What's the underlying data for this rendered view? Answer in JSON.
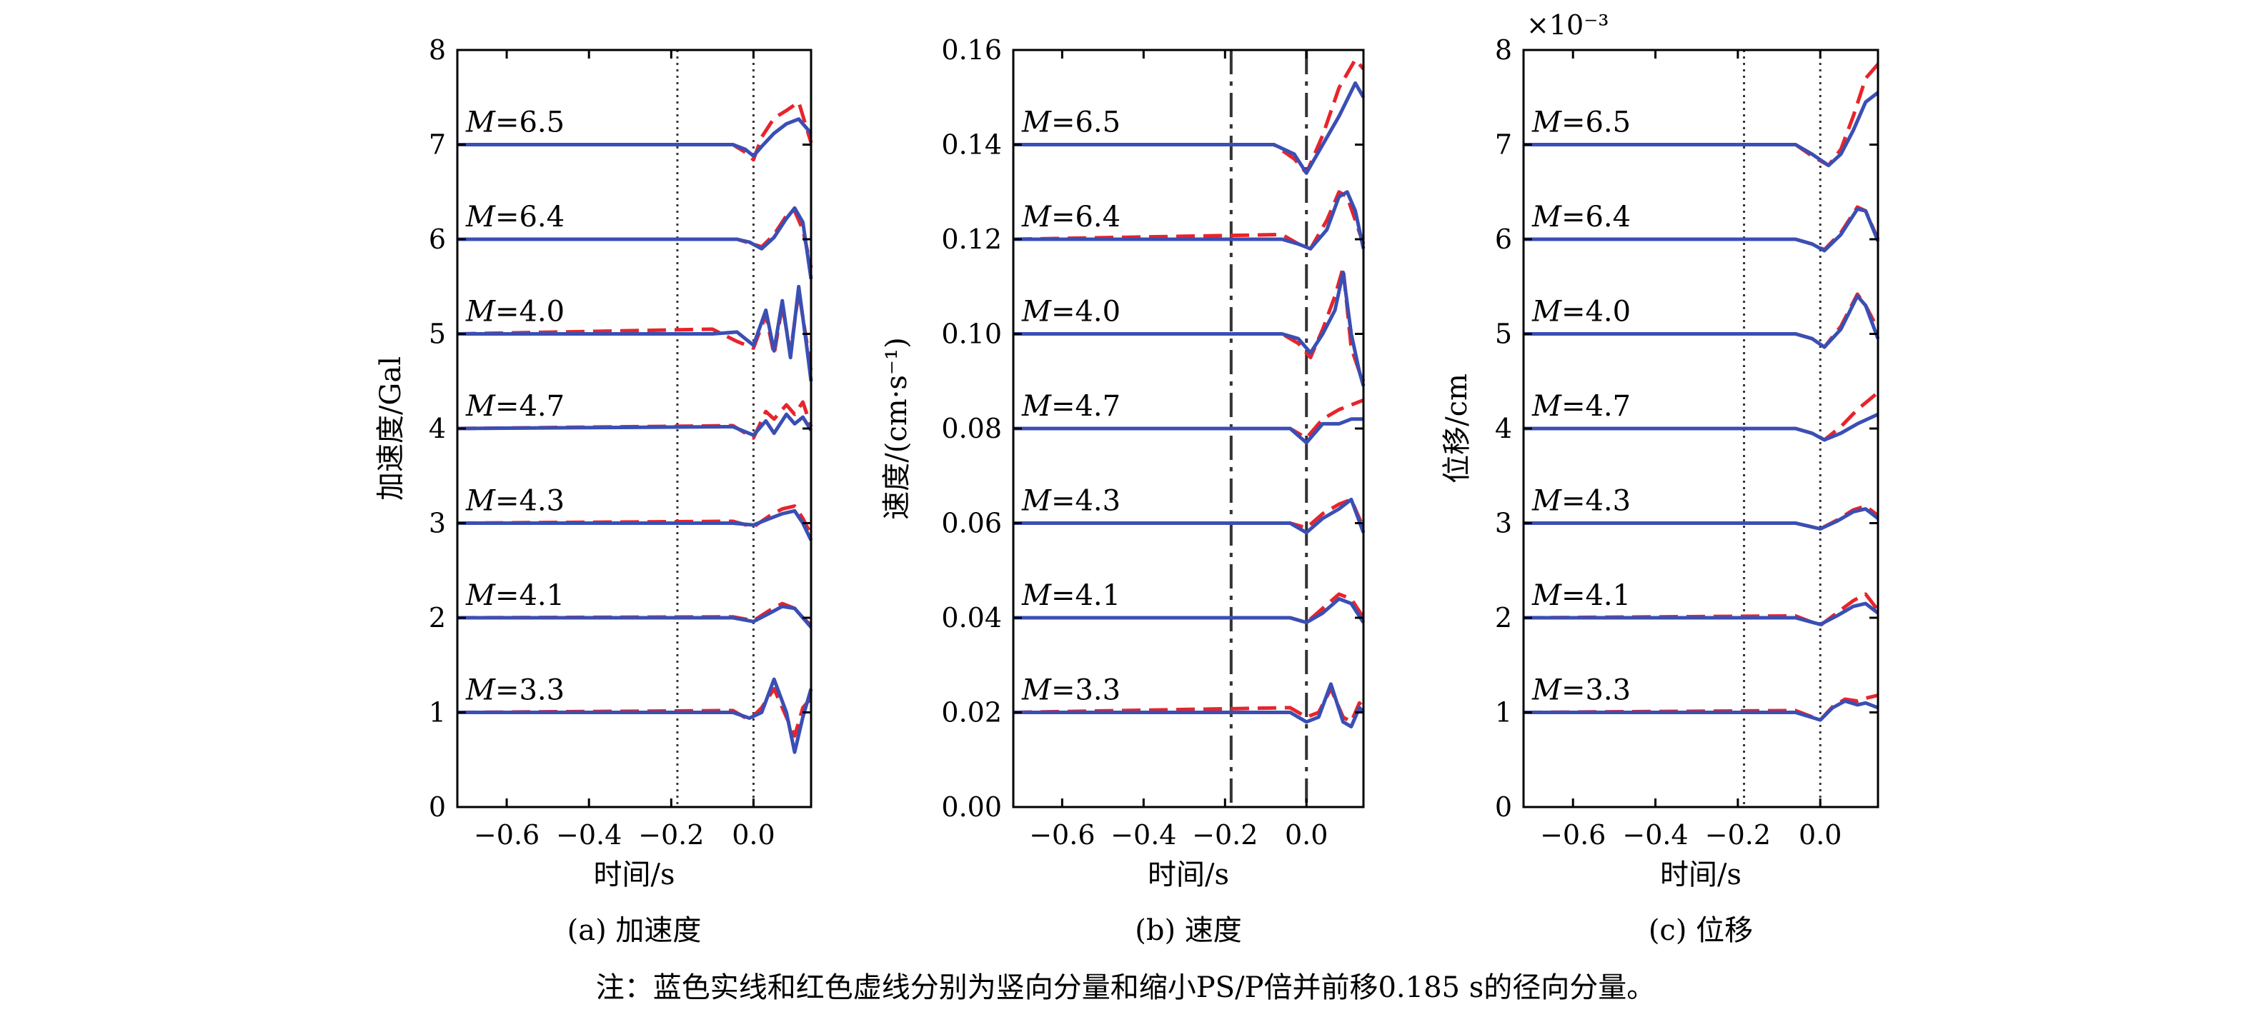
{
  "note": "注：蓝色实线和红色虚线分别为竖向分量和缩小PS/P倍并前移0.185 s的径向分量。",
  "colors": {
    "vertical": "#3a4fb4",
    "radial": "#e8242b",
    "axis": "#000000",
    "marker": "#333333"
  },
  "chart_data": [
    {
      "type": "line",
      "caption": "(a) 加速度",
      "xlabel": "时间/s",
      "ylabel": "加速度/Gal",
      "exponent": "",
      "xlim": [
        -0.72,
        0.14
      ],
      "ylim": [
        0,
        8
      ],
      "xticks": [
        -0.6,
        -0.4,
        -0.2,
        0.0
      ],
      "xtick_labels": [
        "−0.6",
        "−0.4",
        "−0.2",
        "0.0"
      ],
      "yticks": [
        0,
        1,
        2,
        3,
        4,
        5,
        6,
        7,
        8
      ],
      "ytick_labels": [
        "0",
        "1",
        "2",
        "3",
        "4",
        "5",
        "6",
        "7",
        "8"
      ],
      "markers": [
        -0.185,
        0.0
      ],
      "marker_style": "dotted",
      "label_prefix": "M",
      "series": [
        {
          "label": "=6.5",
          "baseline": 7,
          "x": [
            -0.72,
            -0.05,
            -0.02,
            0.0,
            0.02,
            0.05,
            0.08,
            0.11,
            0.14
          ],
          "vertical": [
            7,
            7,
            6.95,
            6.88,
            6.98,
            7.12,
            7.22,
            7.27,
            7.12
          ],
          "radial": [
            7,
            7,
            6.92,
            6.84,
            7.08,
            7.28,
            7.36,
            7.45,
            7.02
          ]
        },
        {
          "label": "=6.4",
          "baseline": 6,
          "x": [
            -0.72,
            -0.04,
            -0.01,
            0.02,
            0.05,
            0.08,
            0.1,
            0.12,
            0.14
          ],
          "vertical": [
            6,
            6,
            5.97,
            5.9,
            6.02,
            6.22,
            6.33,
            6.18,
            5.58
          ],
          "radial": [
            6,
            6,
            5.96,
            5.92,
            6.05,
            6.25,
            6.3,
            6.1,
            5.7
          ]
        },
        {
          "label": "=4.0",
          "baseline": 5,
          "x": [
            -0.72,
            -0.1,
            -0.04,
            0.0,
            0.03,
            0.05,
            0.07,
            0.09,
            0.11,
            0.13,
            0.14
          ],
          "vertical": [
            5,
            5,
            5.02,
            4.88,
            5.25,
            4.82,
            5.35,
            4.75,
            5.5,
            4.85,
            4.5
          ],
          "radial": [
            5,
            5.05,
            4.92,
            4.85,
            5.2,
            4.78,
            5.3,
            4.8,
            5.45,
            4.9,
            4.6
          ]
        },
        {
          "label": "=4.7",
          "baseline": 4,
          "x": [
            -0.72,
            -0.05,
            0.0,
            0.03,
            0.05,
            0.08,
            0.1,
            0.12,
            0.14
          ],
          "vertical": [
            4,
            4.02,
            3.93,
            4.08,
            3.95,
            4.15,
            4.05,
            4.12,
            3.98
          ],
          "radial": [
            4,
            4.03,
            3.9,
            4.18,
            4.1,
            4.25,
            4.15,
            4.28,
            4.02
          ]
        },
        {
          "label": "=4.3",
          "baseline": 3,
          "x": [
            -0.72,
            -0.05,
            0.0,
            0.04,
            0.07,
            0.1,
            0.12,
            0.14
          ],
          "vertical": [
            3,
            3,
            2.98,
            3.05,
            3.1,
            3.13,
            3.0,
            2.82
          ],
          "radial": [
            3,
            3.02,
            2.96,
            3.08,
            3.15,
            3.18,
            3.05,
            2.88
          ]
        },
        {
          "label": "=4.1",
          "baseline": 2,
          "x": [
            -0.72,
            -0.05,
            0.0,
            0.04,
            0.07,
            0.1,
            0.12,
            0.14
          ],
          "vertical": [
            2,
            2,
            1.96,
            2.05,
            2.12,
            2.1,
            2.0,
            1.9
          ],
          "radial": [
            2,
            2.01,
            1.97,
            2.08,
            2.15,
            2.1,
            2.0,
            1.92
          ]
        },
        {
          "label": "=3.3",
          "baseline": 1,
          "x": [
            -0.72,
            -0.05,
            -0.01,
            0.02,
            0.05,
            0.08,
            0.1,
            0.12,
            0.14
          ],
          "vertical": [
            1,
            1,
            0.94,
            1.0,
            1.35,
            1.0,
            0.58,
            0.95,
            1.25
          ],
          "radial": [
            1,
            1.02,
            0.92,
            1.05,
            1.25,
            0.95,
            0.75,
            1.05,
            1.15
          ]
        }
      ]
    },
    {
      "type": "line",
      "caption": "(b) 速度",
      "xlabel": "时间/s",
      "ylabel": "速度/(cm·s⁻¹)",
      "exponent": "",
      "xlim": [
        -0.72,
        0.14
      ],
      "ylim": [
        0,
        0.16
      ],
      "xticks": [
        -0.6,
        -0.4,
        -0.2,
        0.0
      ],
      "xtick_labels": [
        "−0.6",
        "−0.4",
        "−0.2",
        "0.0"
      ],
      "yticks": [
        0,
        0.02,
        0.04,
        0.06,
        0.08,
        0.1,
        0.12,
        0.14,
        0.16
      ],
      "ytick_labels": [
        "0.00",
        "0.02",
        "0.04",
        "0.06",
        "0.08",
        "0.10",
        "0.12",
        "0.14",
        "0.16"
      ],
      "markers": [
        -0.185,
        0.0
      ],
      "marker_style": "dashed",
      "label_prefix": "M",
      "series": [
        {
          "label": "=6.5",
          "baseline": 0.14,
          "x": [
            -0.72,
            -0.08,
            -0.03,
            0.0,
            0.04,
            0.08,
            0.12,
            0.14
          ],
          "vertical": [
            0.14,
            0.14,
            0.138,
            0.134,
            0.14,
            0.146,
            0.153,
            0.15
          ],
          "radial": [
            0.14,
            0.14,
            0.137,
            0.134,
            0.142,
            0.152,
            0.158,
            0.156
          ]
        },
        {
          "label": "=6.4",
          "baseline": 0.12,
          "x": [
            -0.72,
            -0.06,
            -0.02,
            0.01,
            0.05,
            0.08,
            0.1,
            0.12,
            0.14
          ],
          "vertical": [
            0.12,
            0.12,
            0.119,
            0.118,
            0.122,
            0.129,
            0.13,
            0.126,
            0.118
          ],
          "radial": [
            0.12,
            0.121,
            0.119,
            0.118,
            0.124,
            0.13,
            0.129,
            0.124,
            0.119
          ]
        },
        {
          "label": "=4.0",
          "baseline": 0.1,
          "x": [
            -0.72,
            -0.06,
            -0.02,
            0.01,
            0.04,
            0.07,
            0.09,
            0.11,
            0.13,
            0.14
          ],
          "vertical": [
            0.1,
            0.1,
            0.099,
            0.096,
            0.1,
            0.105,
            0.113,
            0.1,
            0.092,
            0.089
          ],
          "radial": [
            0.1,
            0.1,
            0.098,
            0.095,
            0.101,
            0.108,
            0.114,
            0.097,
            0.092,
            0.09
          ]
        },
        {
          "label": "=4.7",
          "baseline": 0.08,
          "x": [
            -0.72,
            -0.04,
            0.0,
            0.04,
            0.08,
            0.11,
            0.14
          ],
          "vertical": [
            0.08,
            0.08,
            0.077,
            0.081,
            0.081,
            0.082,
            0.082
          ],
          "radial": [
            0.08,
            0.08,
            0.078,
            0.082,
            0.084,
            0.085,
            0.086
          ]
        },
        {
          "label": "=4.3",
          "baseline": 0.06,
          "x": [
            -0.72,
            -0.04,
            0.0,
            0.04,
            0.08,
            0.11,
            0.14
          ],
          "vertical": [
            0.06,
            0.06,
            0.058,
            0.061,
            0.063,
            0.065,
            0.058
          ],
          "radial": [
            0.06,
            0.06,
            0.059,
            0.062,
            0.064,
            0.065,
            0.059
          ]
        },
        {
          "label": "=4.1",
          "baseline": 0.04,
          "x": [
            -0.72,
            -0.04,
            0.0,
            0.04,
            0.08,
            0.11,
            0.14
          ],
          "vertical": [
            0.04,
            0.04,
            0.039,
            0.041,
            0.044,
            0.043,
            0.039
          ],
          "radial": [
            0.04,
            0.04,
            0.039,
            0.042,
            0.045,
            0.044,
            0.04
          ]
        },
        {
          "label": "=3.3",
          "baseline": 0.02,
          "x": [
            -0.72,
            -0.04,
            0.0,
            0.03,
            0.06,
            0.09,
            0.11,
            0.13,
            0.14
          ],
          "vertical": [
            0.02,
            0.02,
            0.018,
            0.019,
            0.026,
            0.018,
            0.017,
            0.021,
            0.02
          ],
          "radial": [
            0.02,
            0.021,
            0.019,
            0.02,
            0.025,
            0.019,
            0.018,
            0.022,
            0.021
          ]
        }
      ]
    },
    {
      "type": "line",
      "caption": "(c) 位移",
      "xlabel": "时间/s",
      "ylabel": "位移/cm",
      "exponent": "×10⁻³",
      "xlim": [
        -0.72,
        0.14
      ],
      "ylim": [
        0,
        8
      ],
      "xticks": [
        -0.6,
        -0.4,
        -0.2,
        0.0
      ],
      "xtick_labels": [
        "−0.6",
        "−0.4",
        "−0.2",
        "0.0"
      ],
      "yticks": [
        0,
        1,
        2,
        3,
        4,
        5,
        6,
        7,
        8
      ],
      "ytick_labels": [
        "0",
        "1",
        "2",
        "3",
        "4",
        "5",
        "6",
        "7",
        "8"
      ],
      "markers": [
        -0.185,
        0.0
      ],
      "marker_style": "dotted",
      "label_prefix": "M",
      "series": [
        {
          "label": "=6.5",
          "baseline": 7,
          "x": [
            -0.72,
            -0.06,
            -0.02,
            0.02,
            0.05,
            0.08,
            0.11,
            0.14
          ],
          "vertical": [
            7,
            7,
            6.9,
            6.78,
            6.9,
            7.15,
            7.45,
            7.55
          ],
          "radial": [
            7,
            7,
            6.88,
            6.78,
            6.95,
            7.3,
            7.7,
            7.85
          ]
        },
        {
          "label": "=6.4",
          "baseline": 6,
          "x": [
            -0.72,
            -0.06,
            -0.02,
            0.01,
            0.05,
            0.09,
            0.11,
            0.14
          ],
          "vertical": [
            6,
            6,
            5.95,
            5.88,
            6.05,
            6.32,
            6.3,
            5.98
          ],
          "radial": [
            6,
            6,
            5.95,
            5.89,
            6.07,
            6.34,
            6.3,
            6.0
          ]
        },
        {
          "label": "=4.0",
          "baseline": 5,
          "x": [
            -0.72,
            -0.06,
            -0.02,
            0.01,
            0.05,
            0.09,
            0.11,
            0.14
          ],
          "vertical": [
            5,
            5,
            4.95,
            4.86,
            5.05,
            5.4,
            5.3,
            4.95
          ],
          "radial": [
            5,
            5,
            4.95,
            4.86,
            5.08,
            5.42,
            5.3,
            5.05
          ]
        },
        {
          "label": "=4.7",
          "baseline": 4,
          "x": [
            -0.72,
            -0.06,
            -0.02,
            0.01,
            0.05,
            0.09,
            0.14
          ],
          "vertical": [
            4,
            4,
            3.95,
            3.88,
            3.95,
            4.05,
            4.15
          ],
          "radial": [
            4,
            4,
            3.95,
            3.88,
            4.02,
            4.2,
            4.38
          ]
        },
        {
          "label": "=4.3",
          "baseline": 3,
          "x": [
            -0.72,
            -0.06,
            0.0,
            0.04,
            0.08,
            0.11,
            0.14
          ],
          "vertical": [
            3,
            3,
            2.94,
            3.02,
            3.12,
            3.15,
            3.05
          ],
          "radial": [
            3,
            3,
            2.94,
            3.03,
            3.14,
            3.18,
            3.08
          ]
        },
        {
          "label": "=4.1",
          "baseline": 2,
          "x": [
            -0.72,
            -0.06,
            0.0,
            0.04,
            0.08,
            0.11,
            0.14
          ],
          "vertical": [
            2,
            2,
            1.93,
            2.02,
            2.12,
            2.15,
            2.05
          ],
          "radial": [
            2,
            2.02,
            1.92,
            2.05,
            2.18,
            2.25,
            2.08
          ]
        },
        {
          "label": "=3.3",
          "baseline": 1,
          "x": [
            -0.72,
            -0.06,
            0.0,
            0.03,
            0.06,
            0.09,
            0.11,
            0.14
          ],
          "vertical": [
            1,
            1,
            0.92,
            1.05,
            1.12,
            1.08,
            1.1,
            1.05
          ],
          "radial": [
            1,
            1.02,
            0.92,
            1.06,
            1.14,
            1.12,
            1.15,
            1.18
          ]
        }
      ]
    }
  ]
}
